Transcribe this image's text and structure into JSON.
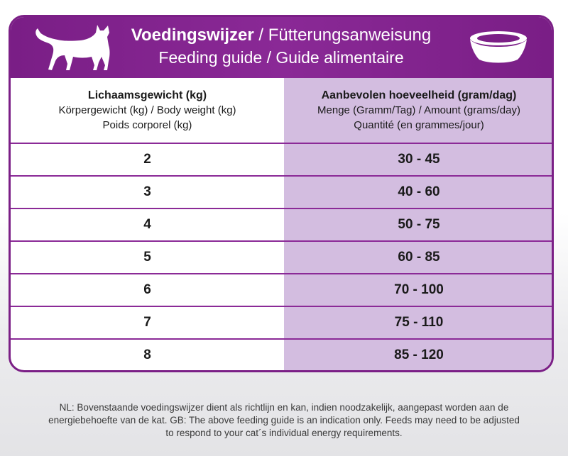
{
  "header": {
    "title_bold": "Voedingswijzer",
    "title_rest": " / Fütterungsanweisung",
    "subtitle": "Feeding guide / Guide alimentaire",
    "cat_icon": "cat-silhouette-icon",
    "bowl_icon": "food-bowl-icon"
  },
  "table": {
    "columns": [
      {
        "title": "Lichaamsgewicht (kg)",
        "line2": "Körpergewicht (kg) / Body weight (kg)",
        "line3": "Poids corporel (kg)"
      },
      {
        "title": "Aanbevolen hoeveelheid (gram/dag)",
        "line2": "Menge (Gramm/Tag) / Amount (grams/day)",
        "line3": "Quantité (en grammes/jour)"
      }
    ],
    "rows": [
      {
        "weight": "2",
        "amount": "30 - 45"
      },
      {
        "weight": "3",
        "amount": "40 - 60"
      },
      {
        "weight": "4",
        "amount": "50 - 75"
      },
      {
        "weight": "5",
        "amount": "60 - 85"
      },
      {
        "weight": "6",
        "amount": "70 - 100"
      },
      {
        "weight": "7",
        "amount": "75 - 110"
      },
      {
        "weight": "8",
        "amount": "85 - 120"
      }
    ]
  },
  "footer": {
    "line1": "NL: Bovenstaande voedingswijzer dient als richtlijn en kan, indien noodzakelijk, aangepast worden aan de",
    "line2": "energiebehoefte van de kat. GB: The above feeding guide is an indication only. Feeds may need to be adjusted",
    "line3": "to respond to your cat´s individual energy requirements."
  },
  "colors": {
    "brand_purple": "#7b1f86",
    "lavender": "#d3bde0"
  }
}
